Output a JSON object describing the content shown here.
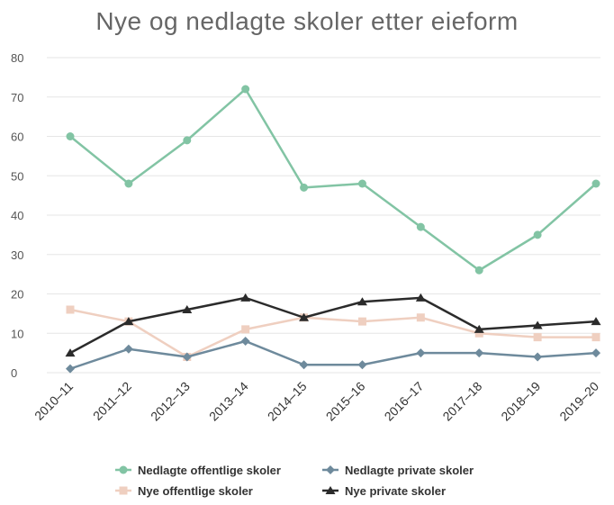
{
  "chart_data": {
    "type": "line",
    "title": "Nye og nedlagte skoler etter eieform",
    "categories": [
      "2010–11",
      "2011–12",
      "2012–13",
      "2013–14",
      "2014–15",
      "2015–16",
      "2016–17",
      "2017–18",
      "2018–19",
      "2019–20"
    ],
    "ylim": [
      0,
      80
    ],
    "yticks": [
      0,
      10,
      20,
      30,
      40,
      50,
      60,
      70,
      80
    ],
    "grid": true,
    "legend_position": "bottom",
    "series": [
      {
        "name": "Nedlagte offentlige skoler",
        "color": "#82c4a4",
        "marker": "circle",
        "values": [
          60,
          48,
          59,
          72,
          47,
          48,
          37,
          26,
          35,
          48
        ]
      },
      {
        "name": "Nedlagte private skoler",
        "color": "#6e8a9c",
        "marker": "diamond",
        "values": [
          1,
          6,
          4,
          8,
          2,
          2,
          5,
          5,
          4,
          5
        ]
      },
      {
        "name": "Nye offentlige skoler",
        "color": "#efcfc0",
        "marker": "square",
        "values": [
          16,
          13,
          4,
          11,
          14,
          13,
          14,
          10,
          9,
          9
        ]
      },
      {
        "name": "Nye private skoler",
        "color": "#2b2b2b",
        "marker": "triangle",
        "values": [
          5,
          13,
          16,
          19,
          14,
          18,
          19,
          11,
          12,
          13
        ]
      }
    ]
  }
}
